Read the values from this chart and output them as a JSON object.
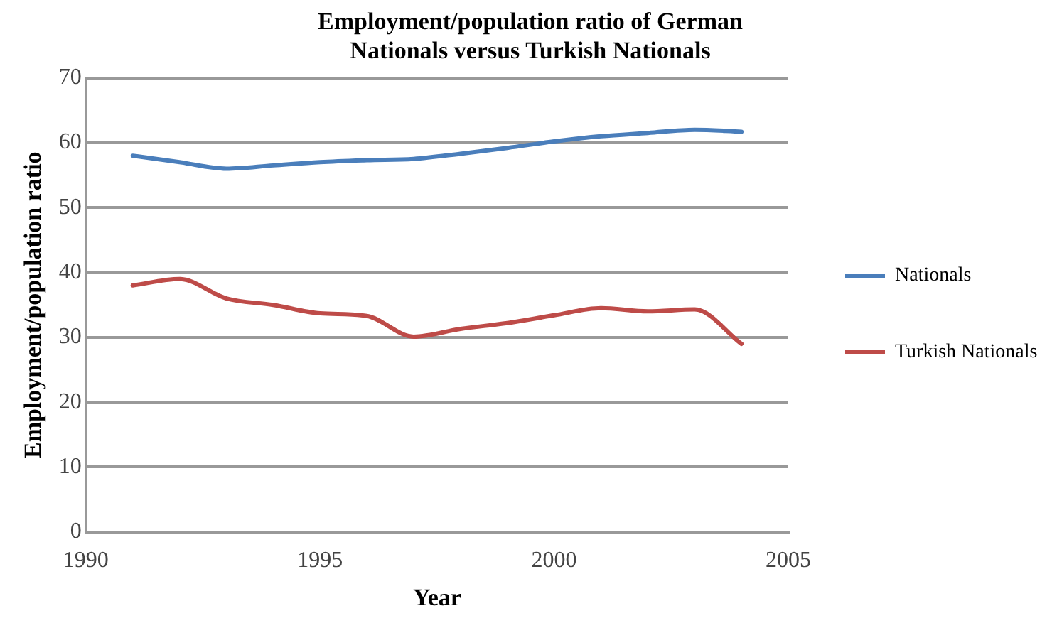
{
  "chart_data": {
    "type": "line",
    "title": "Employment/population ratio of German Nationals versus Turkish Nationals",
    "xlabel": "Year",
    "ylabel": "Employment/population ratio",
    "x": [
      1991,
      1992,
      1993,
      1994,
      1995,
      1996,
      1997,
      1998,
      1999,
      2000,
      2001,
      2002,
      2003,
      2004
    ],
    "series": [
      {
        "name": "Nationals",
        "color": "#4a7ebb",
        "values": [
          58,
          57,
          56,
          56.5,
          57,
          57.3,
          57.5,
          58.3,
          59.2,
          60.2,
          61,
          61.5,
          62,
          61.7
        ]
      },
      {
        "name": "Turkish Nationals",
        "color": "#be4b48",
        "values": [
          38,
          39,
          36,
          35,
          33.7,
          33.3,
          30.1,
          31.3,
          32.2,
          33.4,
          34.5,
          34,
          34.3,
          29
        ]
      }
    ],
    "xlim": [
      1990,
      2005
    ],
    "xticks": [
      1990,
      1995,
      2000,
      2005
    ],
    "ylim": [
      0,
      70
    ],
    "yticks": [
      0,
      10,
      20,
      30,
      40,
      50,
      60,
      70
    ],
    "grid": "y",
    "legend": "right",
    "marker": "none",
    "line_style": "solid"
  }
}
